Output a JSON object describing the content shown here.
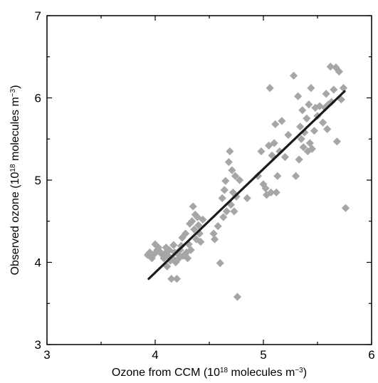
{
  "chart_data": {
    "type": "scatter",
    "xlabel": "Ozone from CCM (10¹⁸ molecules m⁻³)",
    "ylabel": "Observed ozone (10¹⁸ molecules m⁻³)",
    "xlim": [
      3,
      6
    ],
    "ylim": [
      3,
      7
    ],
    "x_ticks": [
      "3",
      "4",
      "5",
      "6"
    ],
    "y_ticks": [
      "3",
      "4",
      "5",
      "6",
      "7"
    ],
    "grid": false,
    "marker": "diamond",
    "marker_color": "#a6a6a6",
    "line_color": "#1a1a1a",
    "fit_line": {
      "x": [
        3.94,
        5.75
      ],
      "y": [
        3.8,
        6.08
      ]
    },
    "points": [
      [
        3.93,
        4.09
      ],
      [
        3.95,
        4.12
      ],
      [
        3.97,
        4.05
      ],
      [
        3.99,
        4.1
      ],
      [
        4.0,
        4.22
      ],
      [
        4.02,
        4.15
      ],
      [
        4.03,
        4.18
      ],
      [
        4.05,
        4.12
      ],
      [
        4.06,
        4.1
      ],
      [
        4.08,
        4.05
      ],
      [
        4.1,
        4.18
      ],
      [
        4.1,
        4.12
      ],
      [
        4.11,
        3.95
      ],
      [
        4.12,
        4.08
      ],
      [
        4.13,
        4.15
      ],
      [
        4.14,
        4.02
      ],
      [
        4.15,
        3.8
      ],
      [
        4.16,
        4.05
      ],
      [
        4.17,
        4.21
      ],
      [
        4.18,
        4.12
      ],
      [
        4.19,
        4.0
      ],
      [
        4.2,
        3.8
      ],
      [
        4.21,
        4.1
      ],
      [
        4.22,
        4.05
      ],
      [
        4.23,
        4.15
      ],
      [
        4.24,
        4.2
      ],
      [
        4.25,
        4.3
      ],
      [
        4.26,
        4.08
      ],
      [
        4.28,
        4.35
      ],
      [
        4.29,
        4.12
      ],
      [
        4.3,
        4.05
      ],
      [
        4.31,
        4.22
      ],
      [
        4.32,
        4.47
      ],
      [
        4.33,
        4.15
      ],
      [
        4.34,
        4.5
      ],
      [
        4.35,
        4.68
      ],
      [
        4.36,
        4.4
      ],
      [
        4.37,
        4.58
      ],
      [
        4.38,
        4.28
      ],
      [
        4.39,
        4.55
      ],
      [
        4.4,
        4.45
      ],
      [
        4.41,
        4.35
      ],
      [
        4.42,
        4.25
      ],
      [
        4.44,
        4.52
      ],
      [
        4.54,
        4.35
      ],
      [
        4.55,
        4.28
      ],
      [
        4.58,
        4.44
      ],
      [
        4.6,
        3.99
      ],
      [
        4.62,
        4.78
      ],
      [
        4.63,
        4.55
      ],
      [
        4.64,
        4.88
      ],
      [
        4.65,
        4.99
      ],
      [
        4.66,
        4.62
      ],
      [
        4.68,
        5.22
      ],
      [
        4.69,
        5.35
      ],
      [
        4.7,
        4.7
      ],
      [
        4.71,
        5.12
      ],
      [
        4.72,
        4.85
      ],
      [
        4.73,
        4.62
      ],
      [
        4.74,
        5.05
      ],
      [
        4.75,
        4.8
      ],
      [
        4.76,
        3.58
      ],
      [
        4.78,
        5.0
      ],
      [
        4.85,
        4.78
      ],
      [
        4.95,
        5.05
      ],
      [
        4.98,
        5.35
      ],
      [
        5.0,
        4.95
      ],
      [
        5.02,
        4.9
      ],
      [
        5.03,
        4.82
      ],
      [
        5.05,
        5.42
      ],
      [
        5.06,
        6.12
      ],
      [
        5.07,
        4.85
      ],
      [
        5.08,
        5.3
      ],
      [
        5.1,
        5.45
      ],
      [
        5.11,
        5.68
      ],
      [
        5.12,
        4.85
      ],
      [
        5.13,
        5.05
      ],
      [
        5.15,
        5.35
      ],
      [
        5.17,
        5.72
      ],
      [
        5.2,
        5.28
      ],
      [
        5.23,
        5.55
      ],
      [
        5.28,
        6.27
      ],
      [
        5.3,
        5.05
      ],
      [
        5.32,
        6.02
      ],
      [
        5.33,
        5.25
      ],
      [
        5.34,
        5.65
      ],
      [
        5.35,
        5.5
      ],
      [
        5.36,
        5.85
      ],
      [
        5.37,
        5.4
      ],
      [
        5.38,
        5.58
      ],
      [
        5.4,
        5.75
      ],
      [
        5.41,
        5.35
      ],
      [
        5.42,
        5.92
      ],
      [
        5.43,
        5.45
      ],
      [
        5.44,
        6.12
      ],
      [
        5.45,
        5.38
      ],
      [
        5.47,
        5.6
      ],
      [
        5.48,
        5.88
      ],
      [
        5.5,
        5.78
      ],
      [
        5.52,
        5.9
      ],
      [
        5.55,
        5.7
      ],
      [
        5.57,
        5.88
      ],
      [
        5.58,
        6.05
      ],
      [
        5.59,
        5.62
      ],
      [
        5.6,
        5.92
      ],
      [
        5.62,
        6.38
      ],
      [
        5.63,
        5.95
      ],
      [
        5.65,
        6.1
      ],
      [
        5.67,
        6.37
      ],
      [
        5.68,
        5.47
      ],
      [
        5.7,
        6.32
      ],
      [
        5.72,
        5.98
      ],
      [
        5.74,
        6.12
      ],
      [
        5.76,
        4.66
      ]
    ]
  }
}
